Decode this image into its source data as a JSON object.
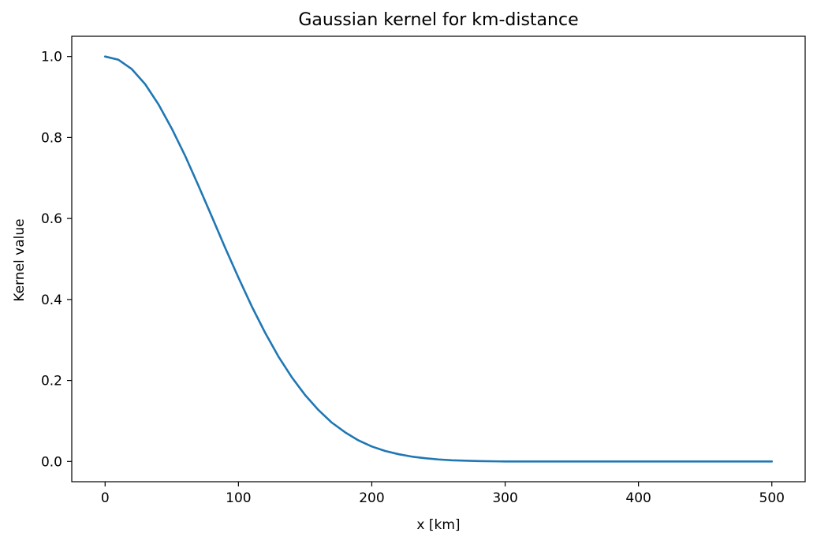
{
  "chart_data": {
    "type": "line",
    "title": "Gaussian kernel for km-distance",
    "xlabel": "x [km]",
    "ylabel": "Kernel value",
    "xlim": [
      -25,
      525
    ],
    "ylim": [
      -0.05,
      1.05
    ],
    "x_ticks": [
      0,
      100,
      200,
      300,
      400,
      500
    ],
    "x_tick_labels": [
      "0",
      "100",
      "200",
      "300",
      "400",
      "500"
    ],
    "y_ticks": [
      0.0,
      0.2,
      0.4,
      0.6,
      0.8,
      1.0
    ],
    "y_tick_labels": [
      "0.0",
      "0.2",
      "0.4",
      "0.6",
      "0.8",
      "1.0"
    ],
    "grid": false,
    "series": [
      {
        "color": "#1f77b4",
        "x": [
          0,
          10,
          20,
          30,
          40,
          50,
          60,
          70,
          80,
          90,
          100,
          110,
          120,
          130,
          140,
          150,
          160,
          170,
          180,
          190,
          200,
          210,
          220,
          230,
          240,
          250,
          260,
          280,
          300,
          350,
          400,
          450,
          500
        ],
        "y": [
          1.0,
          0.992,
          0.969,
          0.932,
          0.882,
          0.822,
          0.755,
          0.681,
          0.605,
          0.528,
          0.454,
          0.383,
          0.318,
          0.259,
          0.208,
          0.164,
          0.127,
          0.096,
          0.072,
          0.052,
          0.037,
          0.026,
          0.018,
          0.012,
          0.008,
          0.005,
          0.003,
          0.001,
          0.0,
          0.0,
          0.0,
          0.0,
          0.0
        ]
      }
    ]
  }
}
